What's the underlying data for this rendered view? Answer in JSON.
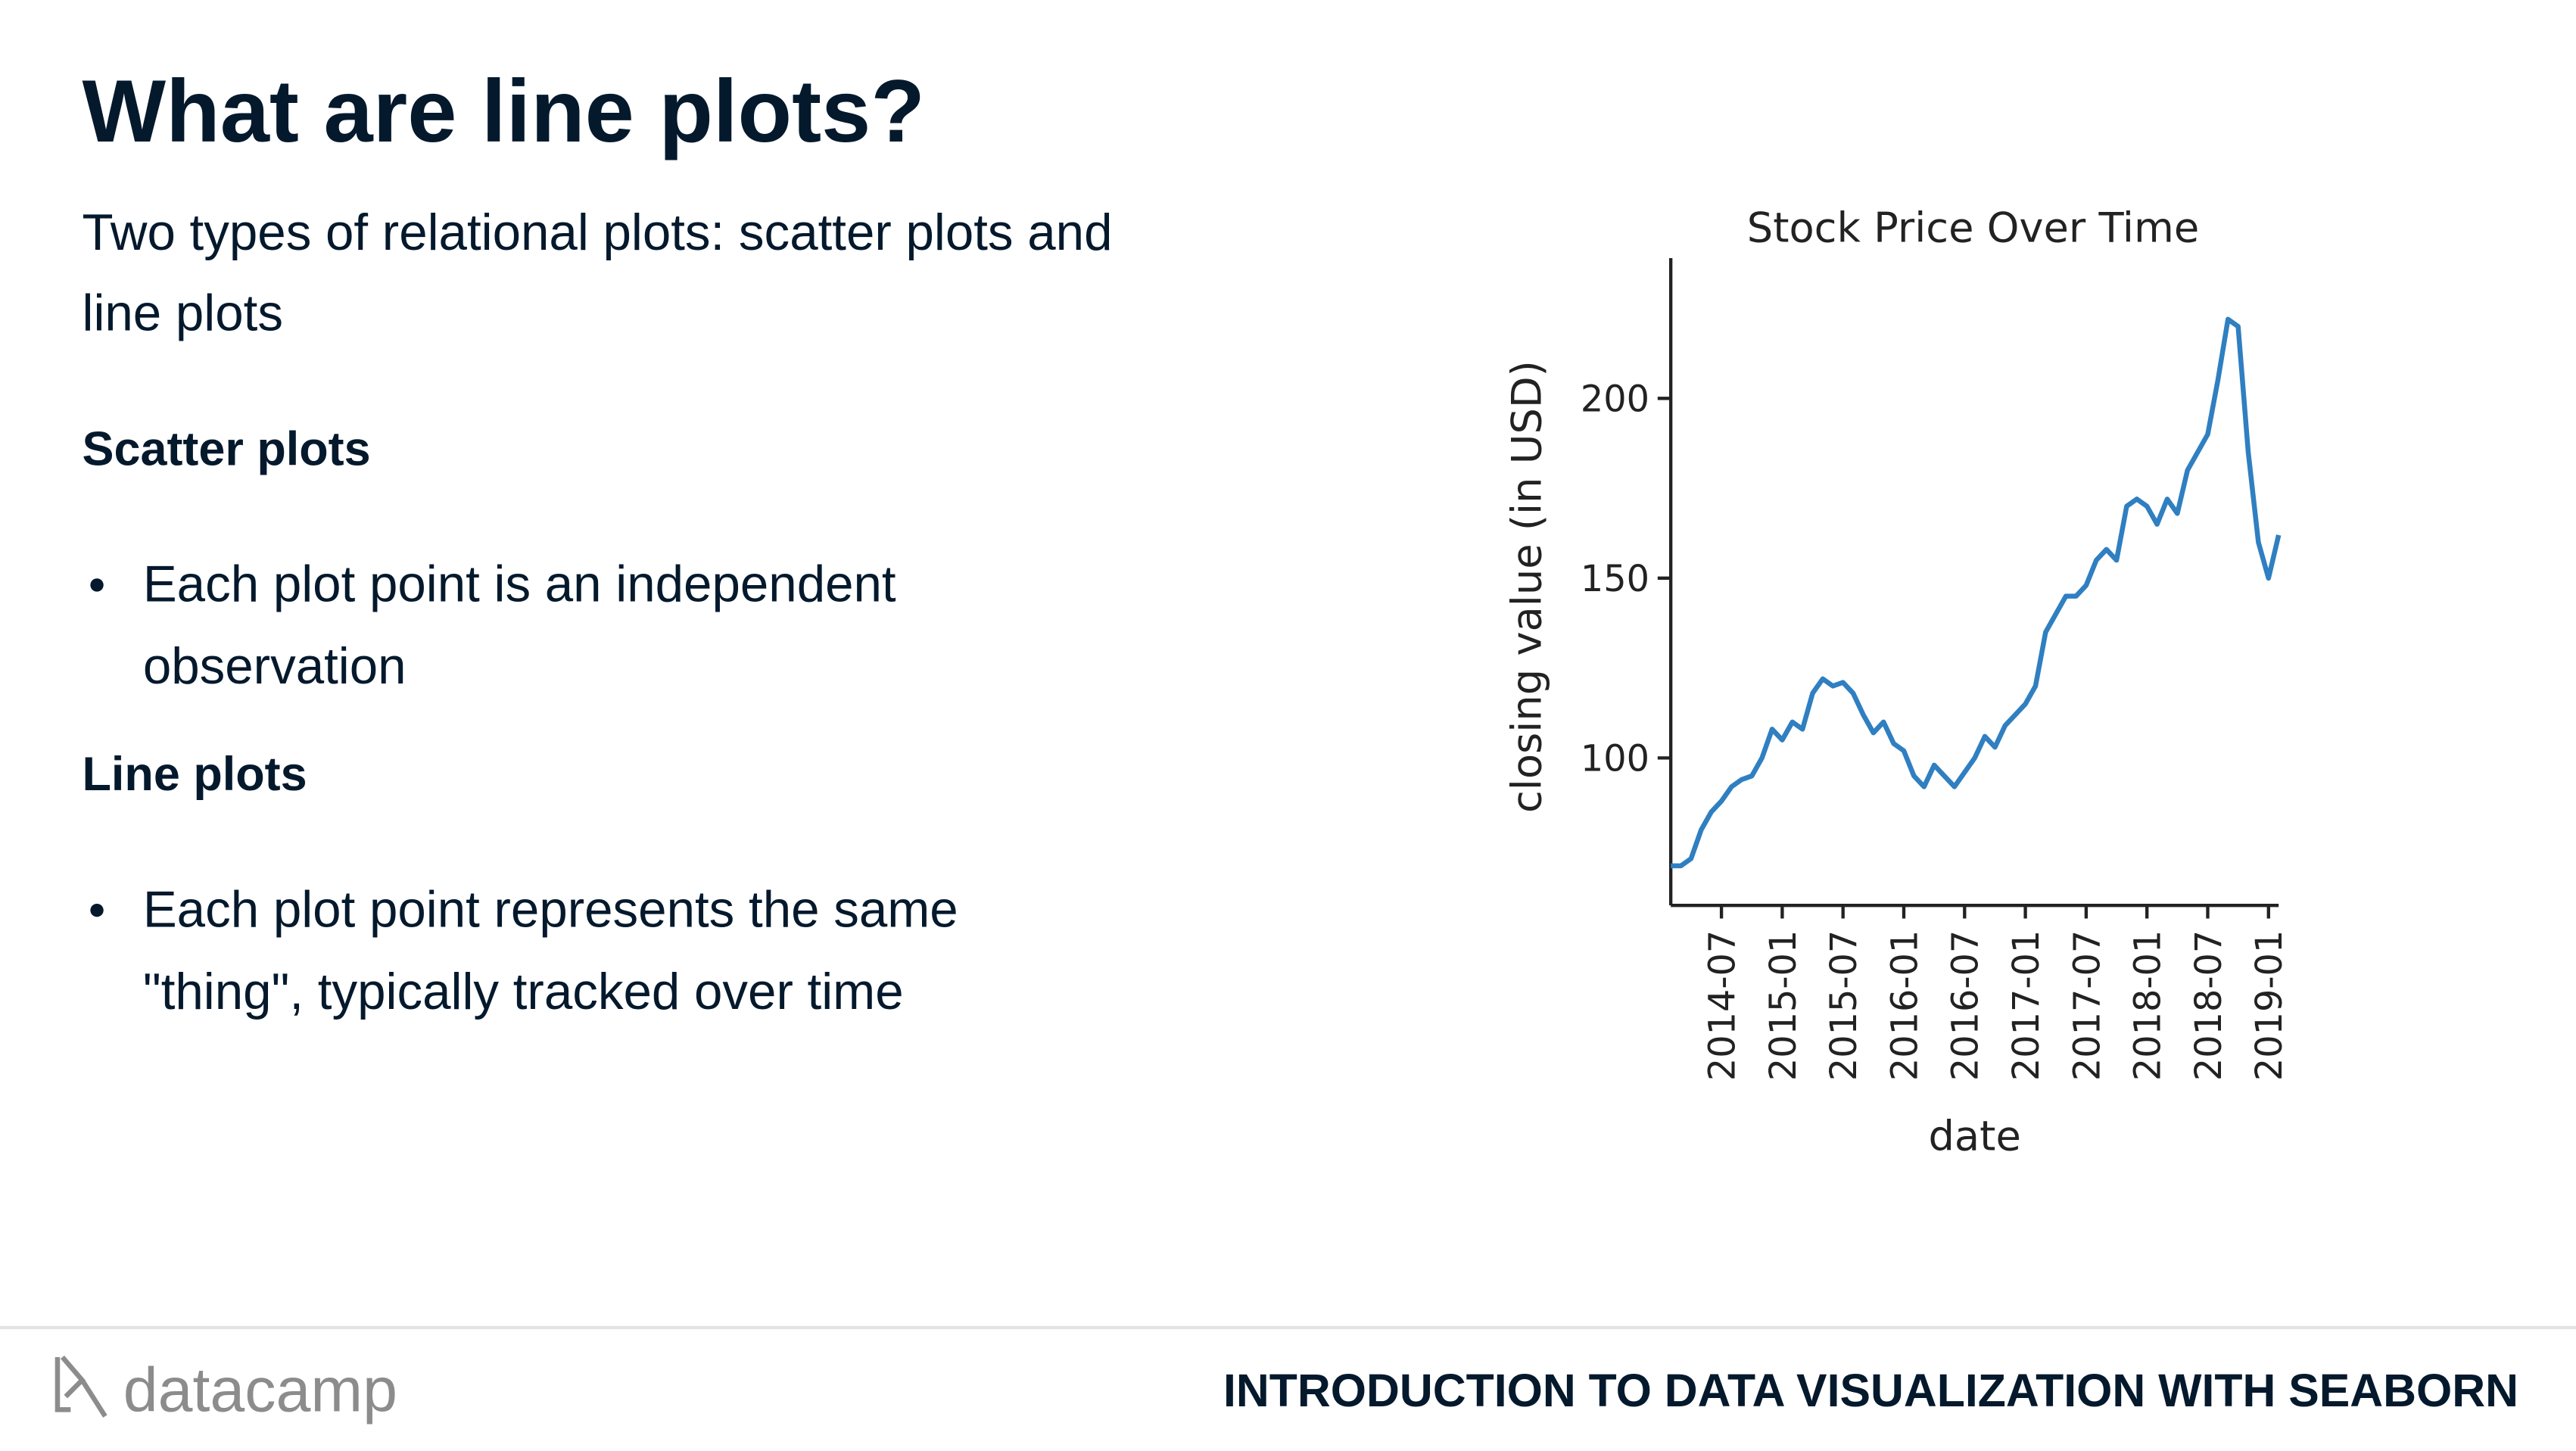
{
  "header": {
    "title": "What are line plots?"
  },
  "intro": [
    "Two types of relational plots: scatter plots and",
    "line plots"
  ],
  "sections": [
    {
      "heading": "Scatter plots",
      "bullet": [
        "Each plot point is an independent",
        "observation"
      ]
    },
    {
      "heading": "Line plots",
      "bullet": [
        "Each plot point represents the same",
        "\"thing\", typically tracked over time"
      ]
    }
  ],
  "footer": {
    "logo": "datacamp",
    "course": "INTRODUCTION TO DATA VISUALIZATION WITH SEABORN"
  },
  "chart_data": {
    "type": "line",
    "title": "Stock Price Over Time",
    "x_label": "date",
    "y_label": "closing value (in USD)",
    "x": [
      "2014-02",
      "2014-03",
      "2014-04",
      "2014-05",
      "2014-06",
      "2014-07",
      "2014-08",
      "2014-09",
      "2014-10",
      "2014-11",
      "2014-12",
      "2015-01",
      "2015-02",
      "2015-03",
      "2015-04",
      "2015-05",
      "2015-06",
      "2015-07",
      "2015-08",
      "2015-09",
      "2015-10",
      "2015-11",
      "2015-12",
      "2016-01",
      "2016-02",
      "2016-03",
      "2016-04",
      "2016-05",
      "2016-06",
      "2016-07",
      "2016-08",
      "2016-09",
      "2016-10",
      "2016-11",
      "2016-12",
      "2017-01",
      "2017-02",
      "2017-03",
      "2017-04",
      "2017-05",
      "2017-06",
      "2017-07",
      "2017-08",
      "2017-09",
      "2017-10",
      "2017-11",
      "2017-12",
      "2018-01",
      "2018-02",
      "2018-03",
      "2018-04",
      "2018-05",
      "2018-06",
      "2018-07",
      "2018-08",
      "2018-09",
      "2018-10",
      "2018-11",
      "2018-12",
      "2019-01",
      "2019-02"
    ],
    "series": [
      {
        "name": "closing value",
        "color": "#2f7fc1",
        "values": [
          70,
          70,
          72,
          80,
          85,
          88,
          92,
          94,
          95,
          100,
          108,
          105,
          110,
          108,
          118,
          122,
          120,
          121,
          118,
          112,
          107,
          110,
          104,
          102,
          95,
          92,
          98,
          95,
          92,
          96,
          100,
          106,
          103,
          109,
          112,
          115,
          120,
          135,
          140,
          145,
          145,
          148,
          155,
          158,
          155,
          170,
          172,
          170,
          165,
          172,
          168,
          180,
          185,
          190,
          205,
          222,
          220,
          185,
          160,
          150,
          162
        ]
      }
    ],
    "xlim": [
      "2014-02",
      "2019-02"
    ],
    "xticks": [
      "2014-07",
      "2015-01",
      "2015-07",
      "2016-01",
      "2016-07",
      "2017-01",
      "2017-07",
      "2018-01",
      "2018-07",
      "2019-01"
    ],
    "ylim": [
      59,
      239
    ],
    "yticks": [
      100,
      150,
      200
    ]
  }
}
